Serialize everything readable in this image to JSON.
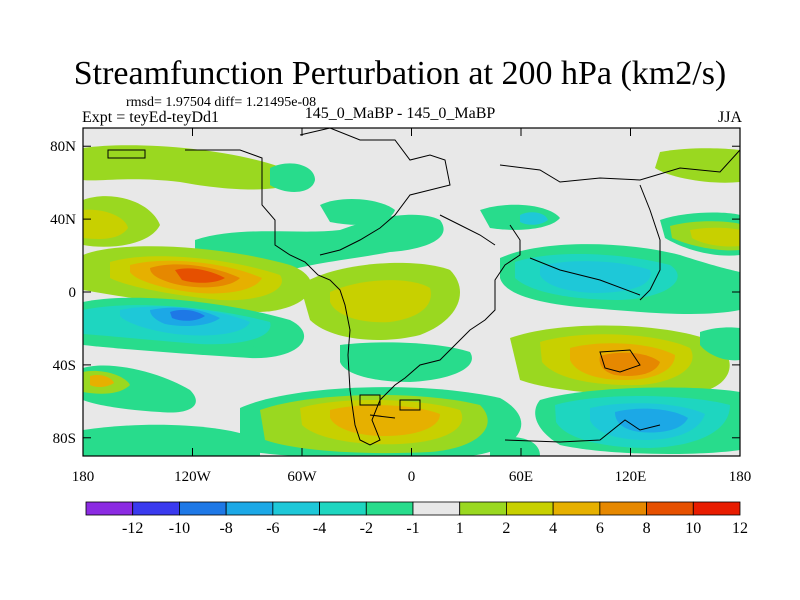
{
  "title": "Streamfunction Perturbation at 200 hPa (km2/s)",
  "stats_line": "rmsd= 1.97504 diff= 1.21495e-08",
  "expt_label": "Expt = teyEd-teyDd1",
  "case_label": "145_0_MaBP - 145_0_MaBP",
  "season": "JJA",
  "chart_data": {
    "type": "heatmap",
    "title": "Streamfunction Perturbation at 200 hPa (km2/s)",
    "x_axis": {
      "ticks": [
        "180",
        "120W",
        "60W",
        "0",
        "60E",
        "120E",
        "180"
      ],
      "range": [
        -180,
        180
      ]
    },
    "y_axis": {
      "ticks": [
        "80N",
        "40N",
        "0",
        "40S",
        "80S"
      ],
      "range": [
        -90,
        90
      ]
    },
    "colorbar": {
      "labels": [
        "-12",
        "-10",
        "-8",
        "-6",
        "-4",
        "-2",
        "-1",
        "1",
        "2",
        "4",
        "6",
        "8",
        "10",
        "12"
      ],
      "colors": [
        "#8b2be2",
        "#3a3aee",
        "#1e78e6",
        "#1ca8e6",
        "#1ec8d8",
        "#1ed6c0",
        "#28dc8c",
        "#e8e8e8",
        "#9ad820",
        "#c8d000",
        "#e6b000",
        "#e68800",
        "#e65000",
        "#e81c00"
      ]
    },
    "features": [
      {
        "name": "north-pacific-positive",
        "lon": -165,
        "lat": 20,
        "value": 2
      },
      {
        "name": "east-pacific-positive",
        "lon": -110,
        "lat": 12,
        "value": 9
      },
      {
        "name": "tropical-pacific-negative",
        "lon": -115,
        "lat": -12,
        "value": -7
      },
      {
        "name": "south-atlantic-positive",
        "lon": -15,
        "lat": -60,
        "value": 6
      },
      {
        "name": "indian-ocean-positive",
        "lon": 118,
        "lat": -40,
        "value": 9
      },
      {
        "name": "asia-negative",
        "lon": 100,
        "lat": 12,
        "value": -4
      },
      {
        "name": "south-indian-negative",
        "lon": 115,
        "lat": -68,
        "value": -5
      },
      {
        "name": "atlantic-band-negative",
        "lon": -30,
        "lat": 35,
        "value": -2
      }
    ]
  }
}
